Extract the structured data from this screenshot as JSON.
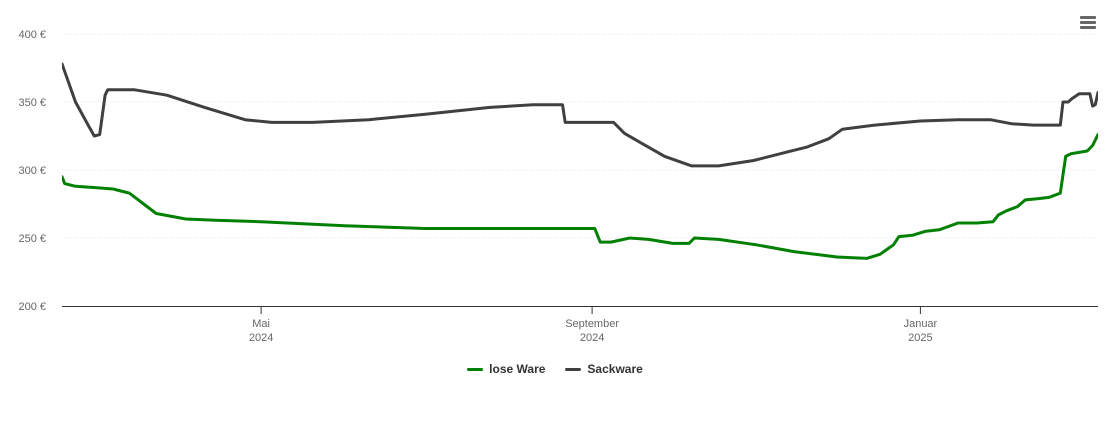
{
  "chart_data": {
    "type": "line",
    "currency_suffix": "€",
    "ylim": [
      200,
      400
    ],
    "yticks": [
      200,
      250,
      300,
      350,
      400
    ],
    "ytick_labels": [
      "200 €",
      "250 €",
      "300 €",
      "350 €",
      "400 €"
    ],
    "xlim": [
      "2024-02-17",
      "2025-03-08"
    ],
    "xticks": [
      {
        "date": "2024-05-01",
        "label_line1": "Mai",
        "label_line2": "2024"
      },
      {
        "date": "2024-09-01",
        "label_line1": "September",
        "label_line2": "2024"
      },
      {
        "date": "2025-01-01",
        "label_line1": "Januar",
        "label_line2": "2025"
      }
    ],
    "grid": true,
    "legend_position": "bottom",
    "series": [
      {
        "name": "lose Ware",
        "color": "#008000",
        "points": [
          [
            "2024-02-17",
            295
          ],
          [
            "2024-02-18",
            290
          ],
          [
            "2024-02-22",
            288
          ],
          [
            "2024-03-01",
            287
          ],
          [
            "2024-03-07",
            286
          ],
          [
            "2024-03-13",
            283
          ],
          [
            "2024-03-23",
            268
          ],
          [
            "2024-04-03",
            264
          ],
          [
            "2024-04-14",
            263
          ],
          [
            "2024-05-01",
            262
          ],
          [
            "2024-06-01",
            259
          ],
          [
            "2024-07-01",
            257
          ],
          [
            "2024-08-01",
            257
          ],
          [
            "2024-09-01",
            257
          ],
          [
            "2024-09-02",
            257
          ],
          [
            "2024-09-04",
            247
          ],
          [
            "2024-09-08",
            247
          ],
          [
            "2024-09-15",
            250
          ],
          [
            "2024-09-22",
            249
          ],
          [
            "2024-10-01",
            246
          ],
          [
            "2024-10-07",
            246
          ],
          [
            "2024-10-09",
            250
          ],
          [
            "2024-10-18",
            249
          ],
          [
            "2024-11-01",
            245
          ],
          [
            "2024-11-15",
            240
          ],
          [
            "2024-12-01",
            236
          ],
          [
            "2024-12-12",
            235
          ],
          [
            "2024-12-17",
            238
          ],
          [
            "2024-12-22",
            245
          ],
          [
            "2024-12-24",
            251
          ],
          [
            "2024-12-29",
            252
          ],
          [
            "2025-01-03",
            255
          ],
          [
            "2025-01-08",
            256
          ],
          [
            "2025-01-15",
            261
          ],
          [
            "2025-01-22",
            261
          ],
          [
            "2025-01-28",
            262
          ],
          [
            "2025-01-30",
            267
          ],
          [
            "2025-02-02",
            270
          ],
          [
            "2025-02-06",
            273
          ],
          [
            "2025-02-09",
            278
          ],
          [
            "2025-02-14",
            279
          ],
          [
            "2025-02-18",
            280
          ],
          [
            "2025-02-22",
            283
          ],
          [
            "2025-02-24",
            310
          ],
          [
            "2025-02-26",
            312
          ],
          [
            "2025-03-04",
            314
          ],
          [
            "2025-03-06",
            318
          ],
          [
            "2025-03-08",
            326
          ]
        ]
      },
      {
        "name": "Sackware",
        "color": "#404040",
        "points": [
          [
            "2024-02-17",
            378
          ],
          [
            "2024-02-22",
            350
          ],
          [
            "2024-02-27",
            332
          ],
          [
            "2024-02-29",
            325
          ],
          [
            "2024-03-02",
            326
          ],
          [
            "2024-03-04",
            355
          ],
          [
            "2024-03-05",
            359
          ],
          [
            "2024-03-15",
            359
          ],
          [
            "2024-03-27",
            355
          ],
          [
            "2024-04-10",
            346
          ],
          [
            "2024-04-25",
            337
          ],
          [
            "2024-05-05",
            335
          ],
          [
            "2024-05-20",
            335
          ],
          [
            "2024-06-10",
            337
          ],
          [
            "2024-07-01",
            341
          ],
          [
            "2024-07-25",
            346
          ],
          [
            "2024-08-10",
            348
          ],
          [
            "2024-08-21",
            348
          ],
          [
            "2024-08-22",
            335
          ],
          [
            "2024-08-31",
            335
          ],
          [
            "2024-09-09",
            335
          ],
          [
            "2024-09-13",
            327
          ],
          [
            "2024-09-20",
            319
          ],
          [
            "2024-09-28",
            310
          ],
          [
            "2024-10-08",
            303
          ],
          [
            "2024-10-18",
            303
          ],
          [
            "2024-10-31",
            307
          ],
          [
            "2024-11-12",
            313
          ],
          [
            "2024-11-20",
            317
          ],
          [
            "2024-11-28",
            323
          ],
          [
            "2024-12-03",
            330
          ],
          [
            "2024-12-15",
            333
          ],
          [
            "2025-01-01",
            336
          ],
          [
            "2025-01-15",
            337
          ],
          [
            "2025-01-27",
            337
          ],
          [
            "2025-02-04",
            334
          ],
          [
            "2025-02-12",
            333
          ],
          [
            "2025-02-22",
            333
          ],
          [
            "2025-02-23",
            350
          ],
          [
            "2025-02-25",
            350
          ],
          [
            "2025-02-26",
            352
          ],
          [
            "2025-03-01",
            356
          ],
          [
            "2025-03-05",
            356
          ],
          [
            "2025-03-06",
            347
          ],
          [
            "2025-03-07",
            348
          ],
          [
            "2025-03-08",
            357
          ]
        ]
      }
    ]
  }
}
